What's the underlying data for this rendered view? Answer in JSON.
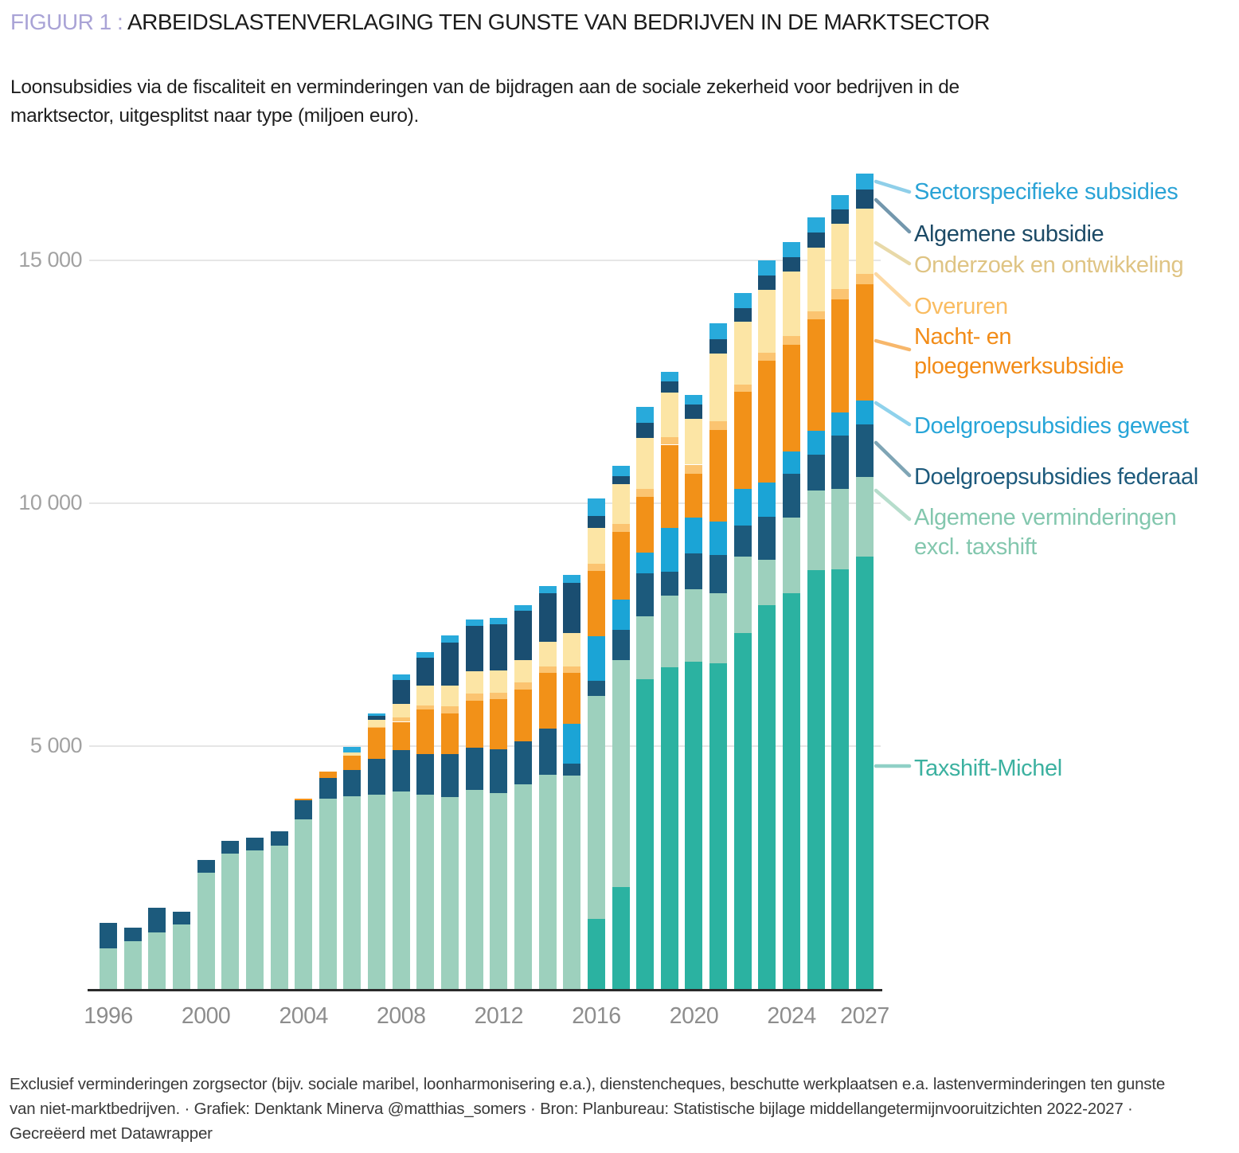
{
  "header": {
    "figure_label": "FIGUUR 1 :",
    "title": "ARBEIDSLASTENVERLAGING TEN GUNSTE VAN BEDRIJVEN IN DE MARKTSECTOR",
    "subtitle_line1": "Loonsubsidies via de fiscaliteit en verminderingen van de bijdragen aan de sociale zekerheid voor bedrijven in de",
    "subtitle_line2": "marktsector, uitgesplitst naar type (miljoen euro)."
  },
  "chart_data": {
    "type": "bar",
    "stacked": true,
    "unit": "miljoen euro",
    "ylim": [
      0,
      17000
    ],
    "y_ticks": [
      {
        "value": 5000,
        "label": "5 000"
      },
      {
        "value": 10000,
        "label": "10 000"
      },
      {
        "value": 15000,
        "label": "15 000"
      }
    ],
    "x_tick_years": [
      "1996",
      "2000",
      "2004",
      "2008",
      "2012",
      "2016",
      "2020",
      "2024",
      "2027"
    ],
    "years": [
      1996,
      1997,
      1998,
      1999,
      2000,
      2001,
      2002,
      2003,
      2004,
      2005,
      2006,
      2007,
      2008,
      2009,
      2010,
      2011,
      2012,
      2013,
      2014,
      2015,
      2016,
      2017,
      2018,
      2019,
      2020,
      2021,
      2022,
      2023,
      2024,
      2025,
      2026,
      2027
    ],
    "series": [
      {
        "key": "taxshift",
        "name": "Taxshift-Michel",
        "color": "#2bb2a1",
        "values": [
          0,
          0,
          0,
          0,
          0,
          0,
          0,
          0,
          0,
          0,
          0,
          0,
          0,
          0,
          0,
          0,
          0,
          0,
          0,
          0,
          1450,
          2100,
          6370,
          6620,
          6740,
          6710,
          7330,
          7900,
          8140,
          8630,
          8640,
          8900
        ]
      },
      {
        "key": "algverm",
        "name": "Algemene verminderingen excl. taxshift",
        "color": "#9dd0bd",
        "values": [
          840,
          990,
          1165,
          1335,
          2395,
          2780,
          2860,
          2950,
          3490,
          3920,
          3960,
          4000,
          4070,
          4000,
          3955,
          4095,
          4030,
          4215,
          4405,
          4395,
          4590,
          4675,
          1300,
          1475,
          1490,
          1440,
          1570,
          940,
          1570,
          1635,
          1650,
          1645
        ]
      },
      {
        "key": "fed",
        "name": "Doelgroepsubsidies federaal",
        "color": "#1c5a7c",
        "values": [
          520,
          280,
          505,
          250,
          255,
          265,
          250,
          300,
          395,
          430,
          545,
          740,
          840,
          840,
          875,
          875,
          905,
          885,
          955,
          240,
          300,
          620,
          885,
          490,
          735,
          790,
          640,
          880,
          900,
          740,
          1110,
          1080
        ]
      },
      {
        "key": "gew",
        "name": "Doelgroepsubsidies gewest",
        "color": "#1ba4d6",
        "values": [
          0,
          0,
          0,
          0,
          0,
          0,
          0,
          0,
          0,
          0,
          0,
          0,
          0,
          0,
          0,
          0,
          0,
          0,
          0,
          825,
          915,
          620,
          425,
          910,
          740,
          685,
          750,
          700,
          450,
          480,
          475,
          495
        ]
      },
      {
        "key": "nacht",
        "name": "Nacht- en ploegenwerksubsidie",
        "color": "#f29118",
        "values": [
          0,
          0,
          0,
          0,
          0,
          0,
          0,
          0,
          25,
          120,
          295,
          630,
          590,
          915,
          850,
          965,
          1035,
          1070,
          1145,
          1045,
          1350,
          1390,
          1150,
          1710,
          900,
          1890,
          2000,
          2520,
          2195,
          2305,
          2320,
          2385
        ]
      },
      {
        "key": "over",
        "name": "Overuren",
        "color": "#fbc471",
        "values": [
          0,
          0,
          0,
          0,
          0,
          0,
          0,
          0,
          0,
          0,
          0,
          30,
          90,
          85,
          145,
          150,
          125,
          135,
          135,
          140,
          145,
          170,
          160,
          150,
          190,
          170,
          160,
          165,
          180,
          165,
          220,
          220
        ]
      },
      {
        "key": "oz",
        "name": "Onderzoek en ontwikkeling",
        "color": "#fce5a5",
        "values": [
          0,
          0,
          0,
          0,
          0,
          0,
          0,
          0,
          0,
          0,
          70,
          140,
          285,
          410,
          425,
          450,
          465,
          470,
          510,
          685,
          745,
          820,
          1060,
          930,
          940,
          1400,
          1280,
          1290,
          1335,
          1315,
          1335,
          1345
        ]
      },
      {
        "key": "algsub",
        "name": "Algemene subsidie",
        "color": "#1a4e71",
        "values": [
          0,
          0,
          0,
          0,
          0,
          0,
          0,
          0,
          0,
          0,
          0,
          90,
          490,
          575,
          885,
          935,
          945,
          1010,
          1000,
          1025,
          235,
          160,
          300,
          220,
          305,
          300,
          290,
          300,
          295,
          300,
          295,
          385
        ]
      },
      {
        "key": "sector",
        "name": "Sectorspecifieke subsidies",
        "color": "#28aadb",
        "values": [
          0,
          0,
          0,
          0,
          0,
          0,
          0,
          0,
          0,
          0,
          120,
          45,
          110,
          110,
          140,
          140,
          140,
          120,
          150,
          170,
          375,
          220,
          330,
          205,
          185,
          320,
          300,
          300,
          305,
          320,
          305,
          330
        ]
      }
    ]
  },
  "legend": {
    "entries": [
      {
        "key": "sector",
        "lines": [
          "Sectorspecifieke subsidies"
        ],
        "label_color": "#2aa3d6",
        "line_color": "#8fcfe9"
      },
      {
        "key": "algsub",
        "lines": [
          "Algemene subsidie"
        ],
        "label_color": "#1c4a66",
        "line_color": "#7397ad"
      },
      {
        "key": "oz",
        "lines": [
          "Onderzoek en ontwikkeling"
        ],
        "label_color": "#dfc484",
        "line_color": "#e8d9a8"
      },
      {
        "key": "over",
        "lines": [
          "Overuren"
        ],
        "label_color": "#f9bc61",
        "line_color": "#fcd9a4"
      },
      {
        "key": "nacht",
        "lines": [
          "Nacht- en",
          "ploegenwerksubsidie"
        ],
        "label_color": "#f28c18",
        "line_color": "#f7b76b"
      },
      {
        "key": "gew",
        "lines": [
          "Doelgroepsubsidies gewest"
        ],
        "label_color": "#27a5d8",
        "line_color": "#8fd2ec"
      },
      {
        "key": "fed",
        "lines": [
          "Doelgroepsubsidies federaal"
        ],
        "label_color": "#1d5a7c",
        "line_color": "#7fa5b5"
      },
      {
        "key": "algverm",
        "lines": [
          "Algemene verminderingen",
          "excl. taxshift"
        ],
        "label_color": "#83c7ae",
        "line_color": "#b6ddcc"
      },
      {
        "key": "taxshift",
        "lines": [
          "Taxshift-Michel"
        ],
        "label_color": "#3cb1a0",
        "line_color": "#8fd0c6"
      }
    ]
  },
  "footer": {
    "line1": "Exclusief verminderingen zorgsector (bijv. sociale maribel, loonharmonisering e.a.), dienstencheques, beschutte werkplaatsen e.a. lastenverminderingen ten gunste",
    "line2": "van niet-marktbedrijven. · Grafiek: Denktank Minerva @matthias_somers · Bron: Planbureau: Statistische bijlage middellangetermijnvooruitzichten 2022-2027 ·",
    "line3": "Gecreëerd met Datawrapper"
  }
}
